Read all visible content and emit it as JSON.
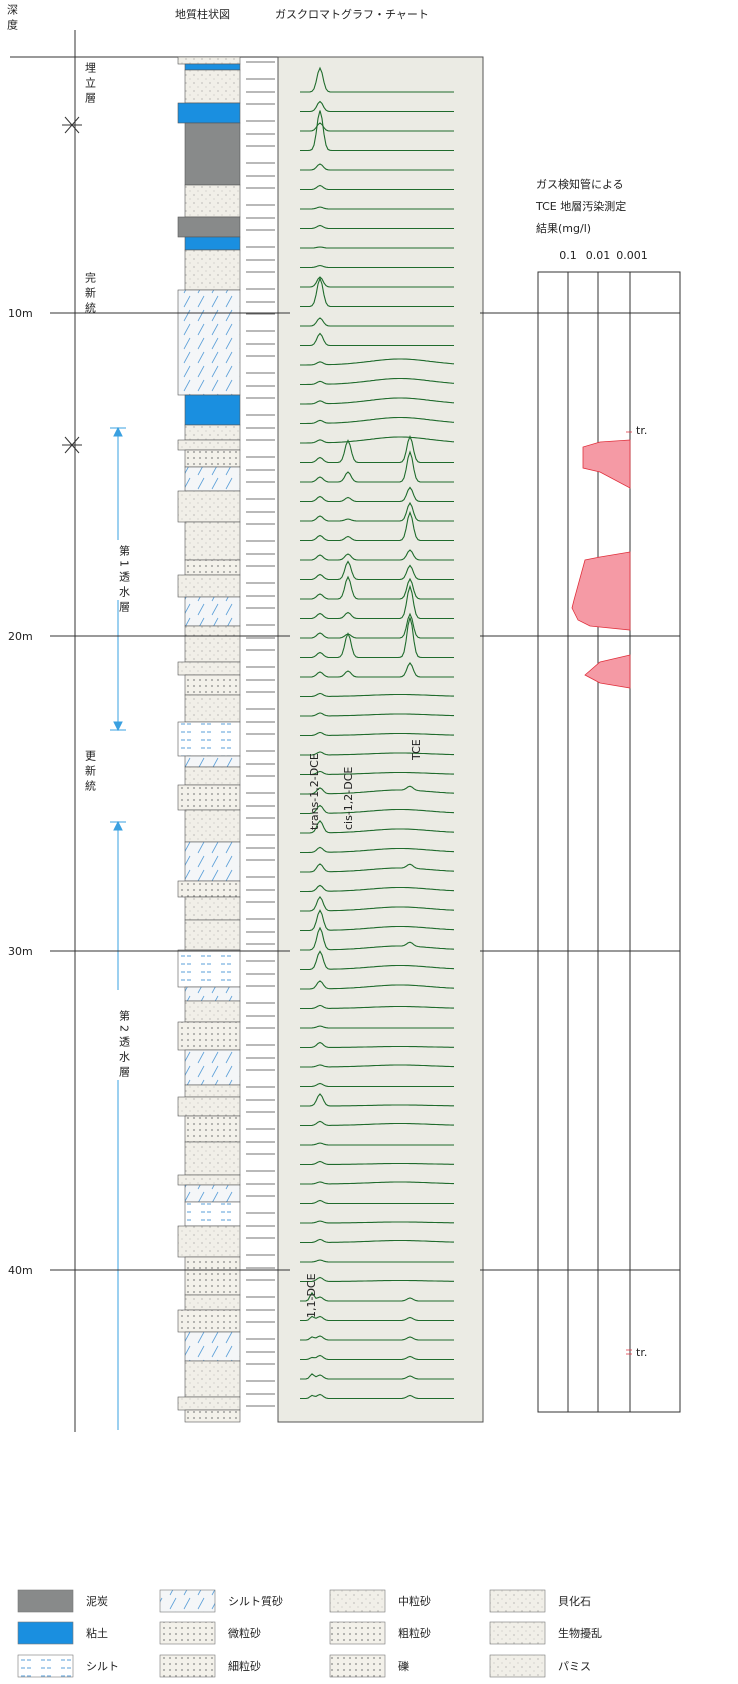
{
  "header": {
    "depth_label": "深度",
    "column_title": "地質柱状図",
    "chart_title": "ガスクロマトグラフ・チャート"
  },
  "depth_ticks": [
    "10m",
    "20m",
    "30m",
    "40m"
  ],
  "strata": {
    "fill": "埋立層",
    "holocene": "完新統",
    "pleistocene": "更新統",
    "aquifer1": "第1透水層",
    "aquifer2": "第2透水層"
  },
  "peaks": {
    "trans": "trans-1,2-DCE",
    "cis": "cis-1,2-DCE",
    "tce": "TCE",
    "dce11": "1,1-DCE"
  },
  "gas_panel": {
    "title": [
      "ガス検知管による",
      "TCE 地層汚染測定",
      "結果(mg/l)"
    ],
    "scale": [
      "0.1",
      "0.01",
      "0.001"
    ],
    "trace_upper": "tr.",
    "trace_lower": "tr."
  },
  "legend": [
    "泥炭",
    "シルト質砂",
    "中粒砂",
    "貝化石",
    "粘土",
    "微粒砂",
    "粗粒砂",
    "生物擾乱",
    "シルト",
    "細粒砂",
    "礫",
    "パミス"
  ]
}
